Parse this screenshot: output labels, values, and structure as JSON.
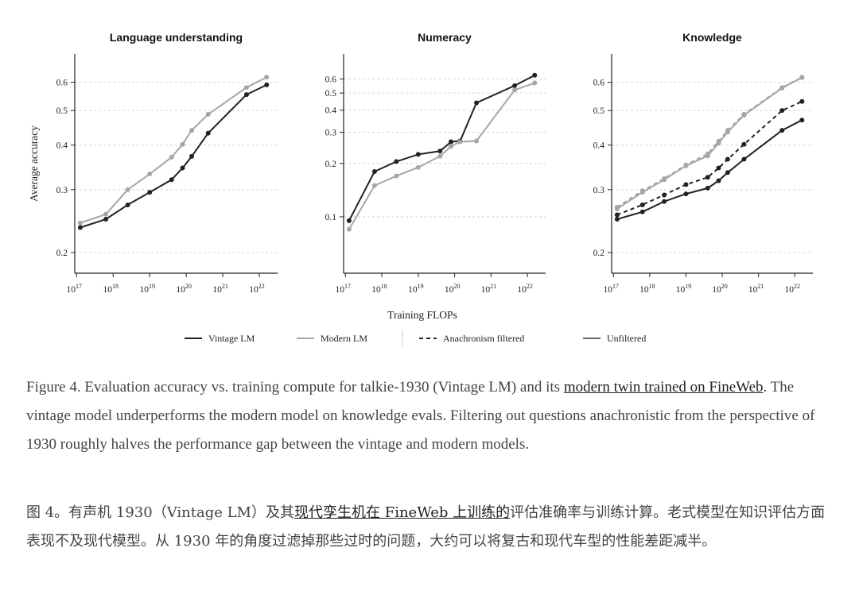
{
  "colors": {
    "vintage": "#222222",
    "modern": "#a6a6a6",
    "grid": "#d4d4d4",
    "axis": "#222222"
  },
  "chart_data": [
    {
      "type": "line",
      "title": "Language understanding",
      "ylabel": "Average accuracy",
      "xscale": "log",
      "yscale": "log",
      "xlim_exp": [
        16.95,
        22.5
      ],
      "ylim": [
        0.175,
        0.72
      ],
      "yticks": [
        0.2,
        0.3,
        0.4,
        0.5,
        0.6
      ],
      "ytick_labels": [
        "0.2",
        "0.3",
        "0.4",
        "0.5",
        "0.6"
      ],
      "series": [
        {
          "name": "Vintage LM",
          "style": "vintage",
          "x_exp": [
            17.1,
            17.8,
            18.4,
            19.0,
            19.6,
            19.9,
            20.15,
            20.6,
            21.65,
            22.2
          ],
          "y": [
            0.235,
            0.248,
            0.272,
            0.295,
            0.32,
            0.345,
            0.372,
            0.432,
            0.554,
            0.59
          ]
        },
        {
          "name": "Modern LM",
          "style": "modern",
          "x_exp": [
            17.1,
            17.8,
            18.4,
            19.0,
            19.6,
            19.9,
            20.15,
            20.6,
            21.65,
            22.2
          ],
          "y": [
            0.242,
            0.256,
            0.3,
            0.332,
            0.37,
            0.402,
            0.44,
            0.488,
            0.58,
            0.62
          ]
        }
      ]
    },
    {
      "type": "line",
      "title": "Numeracy",
      "ylabel": "",
      "xscale": "log",
      "yscale": "log",
      "xlim_exp": [
        16.95,
        22.5
      ],
      "ylim": [
        0.048,
        0.83
      ],
      "yticks": [
        0.1,
        0.2,
        0.3,
        0.4,
        0.5,
        0.6
      ],
      "ytick_labels": [
        "0.1",
        "0.2",
        "0.3",
        "0.4",
        "0.5",
        "0.6"
      ],
      "series": [
        {
          "name": "Vintage LM",
          "style": "vintage",
          "x_exp": [
            17.1,
            17.8,
            18.4,
            19.0,
            19.6,
            19.9,
            20.15,
            20.6,
            21.65,
            22.2
          ],
          "y": [
            0.095,
            0.18,
            0.205,
            0.225,
            0.235,
            0.265,
            0.268,
            0.44,
            0.55,
            0.63
          ]
        },
        {
          "name": "Modern LM",
          "style": "modern",
          "x_exp": [
            17.1,
            17.8,
            18.4,
            19.0,
            19.6,
            19.9,
            20.15,
            20.6,
            21.65,
            22.2
          ],
          "y": [
            0.085,
            0.15,
            0.17,
            0.19,
            0.22,
            0.25,
            0.265,
            0.268,
            0.52,
            0.57
          ]
        }
      ]
    },
    {
      "type": "line",
      "title": "Knowledge",
      "ylabel": "",
      "xscale": "log",
      "yscale": "log",
      "xlim_exp": [
        16.95,
        22.5
      ],
      "ylim": [
        0.175,
        0.72
      ],
      "yticks": [
        0.2,
        0.3,
        0.4,
        0.5,
        0.6
      ],
      "ytick_labels": [
        "0.2",
        "0.3",
        "0.4",
        "0.5",
        "0.6"
      ],
      "series": [
        {
          "name": "Vintage LM (Unfiltered)",
          "style": "vintage",
          "x_exp": [
            17.1,
            17.8,
            18.4,
            19.0,
            19.6,
            19.9,
            20.15,
            20.6,
            21.65,
            22.2
          ],
          "y": [
            0.248,
            0.26,
            0.278,
            0.292,
            0.303,
            0.318,
            0.335,
            0.365,
            0.44,
            0.47
          ]
        },
        {
          "name": "Vintage LM (Anachronism filtered)",
          "style": "vintage-dashed",
          "x_exp": [
            17.1,
            17.8,
            18.4,
            19.0,
            19.6,
            19.9,
            20.15,
            20.6,
            21.65,
            22.2
          ],
          "y": [
            0.255,
            0.272,
            0.29,
            0.31,
            0.325,
            0.345,
            0.365,
            0.402,
            0.5,
            0.53
          ]
        },
        {
          "name": "Modern LM (Unfiltered)",
          "style": "modern",
          "x_exp": [
            17.1,
            17.8,
            18.4,
            19.0,
            19.6,
            19.9,
            20.15,
            20.6,
            21.65,
            22.2
          ],
          "y": [
            0.265,
            0.295,
            0.32,
            0.35,
            0.373,
            0.405,
            0.435,
            0.485,
            0.578,
            0.618
          ]
        },
        {
          "name": "Modern LM (Anachronism filtered)",
          "style": "modern-dashed",
          "x_exp": [
            17.1,
            17.8,
            18.4,
            19.0,
            19.6,
            19.9,
            20.15,
            20.6,
            21.65,
            22.2
          ],
          "y": [
            0.268,
            0.298,
            0.322,
            0.352,
            0.378,
            0.41,
            0.44,
            0.488,
            0.58,
            0.62
          ]
        }
      ]
    }
  ],
  "xticks_exp": [
    17,
    18,
    19,
    20,
    21,
    22
  ],
  "xtick_base": "10",
  "xlabel": "Training FLOPs",
  "legend": [
    {
      "label": "Vintage LM",
      "style": "vintage"
    },
    {
      "label": "Modern LM",
      "style": "modern"
    },
    {
      "label": "Anachronism filtered",
      "style": "dashed"
    },
    {
      "label": "Unfiltered",
      "style": "solid"
    }
  ],
  "caption_en": {
    "prefix": "Figure 4. Evaluation accuracy vs. training compute for talkie-1930 (Vintage LM) and its ",
    "link": "modern twin trained on FineWeb",
    "suffix": ". The vintage model underperforms the modern model on knowledge evals. Filtering out questions anachronistic from the perspective of 1930 roughly halves the performance gap between the vintage and modern models."
  },
  "caption_zh": {
    "prefix": "图 4。有声机 1930（Vintage LM）及其",
    "link": "现代孪生机在 FineWeb 上训练的",
    "suffix": "评估准确率与训练计算。老式模型在知识评估方面表现不及现代模型。从 1930 年的角度过滤掉那些过时的问题，大约可以将复古和现代车型的性能差距减半。"
  }
}
